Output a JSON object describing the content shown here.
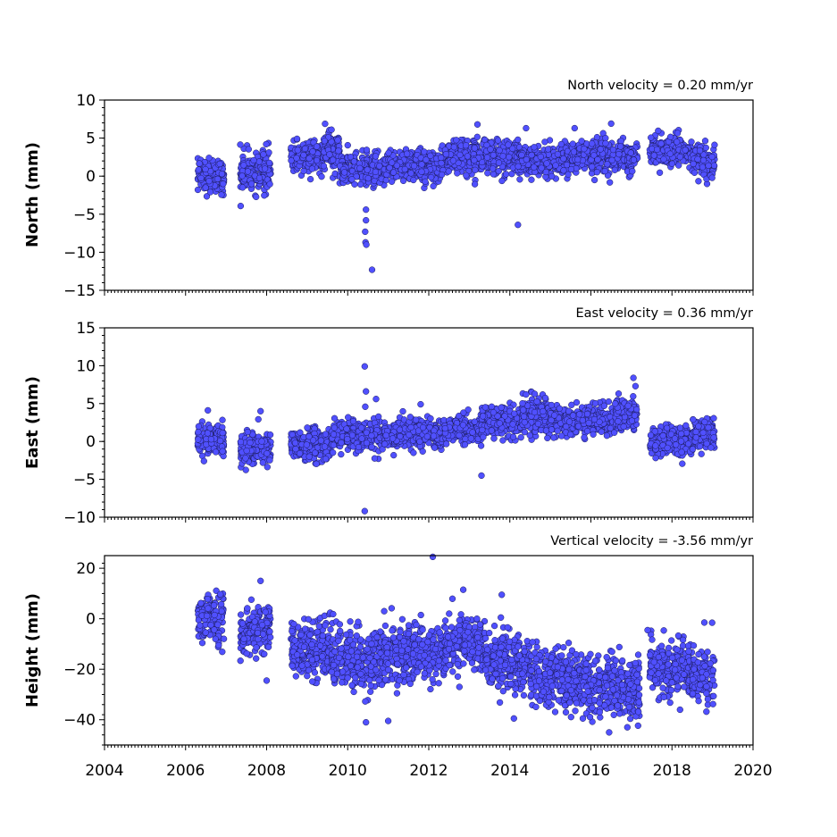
{
  "chart_data": [
    {
      "type": "scatter",
      "title": "North velocity = 0.20 mm/yr",
      "ylabel": "North (mm)",
      "xlim": [
        2004,
        2020
      ],
      "ylim": [
        -15,
        10
      ],
      "yticks": [
        -15,
        -10,
        -5,
        0,
        5,
        10
      ],
      "ytick_labels": [
        "−15",
        "−10",
        "−5",
        "0",
        "5",
        "10"
      ],
      "marker_color": "#5050ff",
      "segments": [
        {
          "start": 2006.3,
          "end": 2006.95,
          "mean": 0.0,
          "noise": 1.1
        },
        {
          "start": 2007.35,
          "end": 2008.1,
          "mean": 0.6,
          "noise": 1.3
        },
        {
          "start": 2008.6,
          "end": 2009.4,
          "mean": 2.5,
          "noise": 1.0
        },
        {
          "start": 2009.4,
          "end": 2009.8,
          "mean": 3.2,
          "noise": 1.2
        },
        {
          "start": 2009.8,
          "end": 2010.9,
          "mean": 0.9,
          "noise": 1.0
        },
        {
          "start": 2010.9,
          "end": 2012.3,
          "mean": 1.3,
          "noise": 1.0
        },
        {
          "start": 2012.3,
          "end": 2013.1,
          "mean": 2.5,
          "noise": 1.0
        },
        {
          "start": 2013.1,
          "end": 2014.2,
          "mean": 2.6,
          "noise": 1.1
        },
        {
          "start": 2014.2,
          "end": 2015.5,
          "mean": 2.0,
          "noise": 1.0
        },
        {
          "start": 2015.5,
          "end": 2016.9,
          "mean": 2.5,
          "noise": 1.0
        },
        {
          "start": 2016.9,
          "end": 2017.15,
          "mean": 2.5,
          "noise": 1.0
        },
        {
          "start": 2017.45,
          "end": 2018.5,
          "mean": 3.5,
          "noise": 0.9
        },
        {
          "start": 2018.5,
          "end": 2019.05,
          "mean": 2.0,
          "noise": 1.0
        }
      ],
      "outliers": [
        [
          2010.45,
          -4.4
        ],
        [
          2010.45,
          -5.8
        ],
        [
          2010.43,
          -7.3
        ],
        [
          2010.44,
          -8.7
        ],
        [
          2010.46,
          -9.0
        ],
        [
          2010.6,
          -12.3
        ],
        [
          2014.2,
          -6.4
        ],
        [
          2013.2,
          6.8
        ],
        [
          2016.5,
          6.9
        ],
        [
          2009.6,
          6.1
        ],
        [
          2014.4,
          6.3
        ],
        [
          2015.6,
          6.3
        ]
      ]
    },
    {
      "type": "scatter",
      "title": "East velocity = 0.36 mm/yr",
      "ylabel": "East (mm)",
      "xlim": [
        2004,
        2020
      ],
      "ylim": [
        -10,
        15
      ],
      "yticks": [
        -10,
        -5,
        0,
        5,
        10,
        15
      ],
      "ytick_labels": [
        "−10",
        "−5",
        "0",
        "5",
        "10",
        "15"
      ],
      "marker_color": "#5050ff",
      "segments": [
        {
          "start": 2006.3,
          "end": 2006.95,
          "mean": 0.2,
          "noise": 1.0
        },
        {
          "start": 2007.35,
          "end": 2008.1,
          "mean": -1.0,
          "noise": 1.1
        },
        {
          "start": 2008.6,
          "end": 2009.6,
          "mean": -0.5,
          "noise": 1.0
        },
        {
          "start": 2009.6,
          "end": 2010.9,
          "mean": 0.8,
          "noise": 1.0
        },
        {
          "start": 2010.9,
          "end": 2012.4,
          "mean": 1.0,
          "noise": 0.9
        },
        {
          "start": 2012.4,
          "end": 2013.3,
          "mean": 1.5,
          "noise": 0.9
        },
        {
          "start": 2013.3,
          "end": 2014.3,
          "mean": 2.5,
          "noise": 1.0
        },
        {
          "start": 2014.3,
          "end": 2015.0,
          "mean": 3.5,
          "noise": 1.2
        },
        {
          "start": 2015.0,
          "end": 2016.6,
          "mean": 2.8,
          "noise": 0.9
        },
        {
          "start": 2016.6,
          "end": 2017.15,
          "mean": 3.5,
          "noise": 1.0
        },
        {
          "start": 2017.45,
          "end": 2018.5,
          "mean": 0.0,
          "noise": 1.0
        },
        {
          "start": 2018.5,
          "end": 2019.05,
          "mean": 1.0,
          "noise": 1.0
        }
      ],
      "outliers": [
        [
          2010.42,
          9.9
        ],
        [
          2010.45,
          6.6
        ],
        [
          2010.7,
          5.6
        ],
        [
          2010.42,
          -9.2
        ],
        [
          2013.3,
          -4.5
        ],
        [
          2017.05,
          8.4
        ],
        [
          2017.1,
          7.3
        ],
        [
          2006.55,
          4.1
        ],
        [
          2007.85,
          4.0
        ],
        [
          2014.4,
          6.2
        ],
        [
          2011.8,
          4.9
        ],
        [
          2016.6,
          5.0
        ]
      ]
    },
    {
      "type": "scatter",
      "title": "Vertical velocity = -3.56 mm/yr",
      "ylabel": "Height (mm)",
      "xlim": [
        2004,
        2020
      ],
      "ylim": [
        -50,
        25
      ],
      "yticks": [
        -40,
        -20,
        0,
        20
      ],
      "ytick_labels": [
        "−40",
        "−20",
        "0",
        "20"
      ],
      "xticks": [
        2004,
        2006,
        2008,
        2010,
        2012,
        2014,
        2016,
        2018,
        2020
      ],
      "xtick_labels": [
        "2004",
        "2006",
        "2008",
        "2010",
        "2012",
        "2014",
        "2016",
        "2018",
        "2020"
      ],
      "marker_color": "#5050ff",
      "segments": [
        {
          "start": 2006.3,
          "end": 2006.95,
          "mean": 0.0,
          "noise": 4.5
        },
        {
          "start": 2007.35,
          "end": 2008.1,
          "mean": -5.0,
          "noise": 4.5
        },
        {
          "start": 2008.6,
          "end": 2009.6,
          "mean": -12.0,
          "noise": 5.5
        },
        {
          "start": 2009.6,
          "end": 2010.9,
          "mean": -16.0,
          "noise": 6.0
        },
        {
          "start": 2010.9,
          "end": 2012.4,
          "mean": -14.0,
          "noise": 5.5
        },
        {
          "start": 2012.4,
          "end": 2013.4,
          "mean": -10.0,
          "noise": 5.0
        },
        {
          "start": 2013.4,
          "end": 2014.5,
          "mean": -17.0,
          "noise": 5.5
        },
        {
          "start": 2014.5,
          "end": 2015.8,
          "mean": -24.0,
          "noise": 5.5
        },
        {
          "start": 2015.8,
          "end": 2017.2,
          "mean": -27.0,
          "noise": 5.5
        },
        {
          "start": 2017.45,
          "end": 2018.5,
          "mean": -20.0,
          "noise": 5.5
        },
        {
          "start": 2018.5,
          "end": 2019.05,
          "mean": -23.0,
          "noise": 5.0
        }
      ],
      "outliers": [
        [
          2012.1,
          24.5
        ],
        [
          2007.85,
          15.0
        ],
        [
          2012.85,
          11.5
        ],
        [
          2013.8,
          9.5
        ],
        [
          2010.9,
          3.0
        ],
        [
          2010.45,
          -41.0
        ],
        [
          2011.0,
          -40.5
        ],
        [
          2016.45,
          -45.0
        ],
        [
          2016.9,
          -43.0
        ],
        [
          2018.8,
          -1.5
        ],
        [
          2017.4,
          -4.5
        ],
        [
          2014.1,
          -39.5
        ],
        [
          2008.0,
          -24.5
        ]
      ]
    }
  ]
}
